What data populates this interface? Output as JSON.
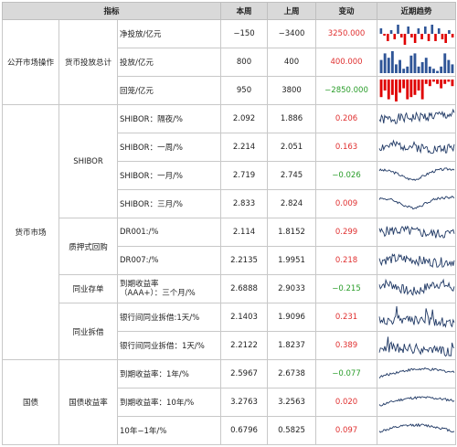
{
  "headers": {
    "indicator": "指标",
    "this_week": "本周",
    "last_week": "上周",
    "change": "变动",
    "trend": "近期趋势"
  },
  "categories": {
    "open_market": "公开市场操作",
    "money_market": "货币市场",
    "treasury": "国债"
  },
  "groups": {
    "total_injection": "货币投放总计",
    "shibor": "SHIBOR",
    "repo": "质押式回购",
    "ncd": "同业存单",
    "interbank": "同业拆借",
    "bond_yield": "国债收益率"
  },
  "rows": [
    {
      "name": "净投放/亿元",
      "this": "−150",
      "last": "−3400",
      "chg": "3250.000",
      "sign": "pos"
    },
    {
      "name": "投放/亿元",
      "this": "800",
      "last": "400",
      "chg": "400.000",
      "sign": "pos"
    },
    {
      "name": "回笼/亿元",
      "this": "950",
      "last": "3800",
      "chg": "−2850.000",
      "sign": "neg"
    },
    {
      "name": "SHIBOR：隔夜/%",
      "this": "2.092",
      "last": "1.886",
      "chg": "0.206",
      "sign": "pos"
    },
    {
      "name": "SHIBOR：一周/%",
      "this": "2.214",
      "last": "2.051",
      "chg": "0.163",
      "sign": "pos"
    },
    {
      "name": "SHIBOR：一月/%",
      "this": "2.719",
      "last": "2.745",
      "chg": "−0.026",
      "sign": "neg"
    },
    {
      "name": "SHIBOR：三月/%",
      "this": "2.833",
      "last": "2.824",
      "chg": "0.009",
      "sign": "pos"
    },
    {
      "name": "DR001:/%",
      "this": "2.114",
      "last": "1.8152",
      "chg": "0.299",
      "sign": "pos"
    },
    {
      "name": "DR007:/%",
      "this": "2.2135",
      "last": "1.9951",
      "chg": "0.218",
      "sign": "pos"
    },
    {
      "name": "到期收益率",
      "name2": "（AAA+）：三个月/%",
      "this": "2.6888",
      "last": "2.9033",
      "chg": "−0.215",
      "sign": "neg"
    },
    {
      "name": "银行间同业拆借:1天/%",
      "this": "2.1403",
      "last": "1.9096",
      "chg": "0.231",
      "sign": "pos"
    },
    {
      "name": "银行间同业拆借：1天/%",
      "this": "2.2122",
      "last": "1.8237",
      "chg": "0.389",
      "sign": "pos"
    },
    {
      "name": "到期收益率：1年/%",
      "this": "2.5967",
      "last": "2.6738",
      "chg": "−0.077",
      "sign": "neg"
    },
    {
      "name": "到期收益率：10年/%",
      "this": "3.2763",
      "last": "3.2563",
      "chg": "0.020",
      "sign": "pos"
    },
    {
      "name": "10年−1年/%",
      "this": "0.6796",
      "last": "0.5825",
      "chg": "0.097",
      "sign": "pos"
    }
  ],
  "bars": {
    "net": [
      3,
      -1,
      -4,
      2,
      -3,
      5,
      -2,
      -6,
      4,
      -2,
      -5,
      3,
      -3,
      4,
      -4,
      5,
      -4,
      3,
      -3,
      -5,
      2,
      -2
    ],
    "inject": [
      6,
      9,
      7,
      10,
      4,
      6,
      2,
      3,
      8,
      9,
      3,
      5,
      7,
      3,
      2,
      1,
      3,
      9,
      6,
      4
    ],
    "withdraw": [
      -8,
      -5,
      -9,
      -7,
      -10,
      -6,
      -4,
      -9,
      -8,
      -7,
      -5,
      -9,
      -2,
      -3,
      -1,
      -2,
      -4,
      -2,
      -1,
      -3
    ]
  },
  "colors": {
    "header_bg": "#d9d9d9",
    "pos": "#e03030",
    "neg": "#2a9d2a",
    "bar_blue": "#2f5597",
    "bar_red": "#e00000",
    "line": "#1f3864"
  }
}
